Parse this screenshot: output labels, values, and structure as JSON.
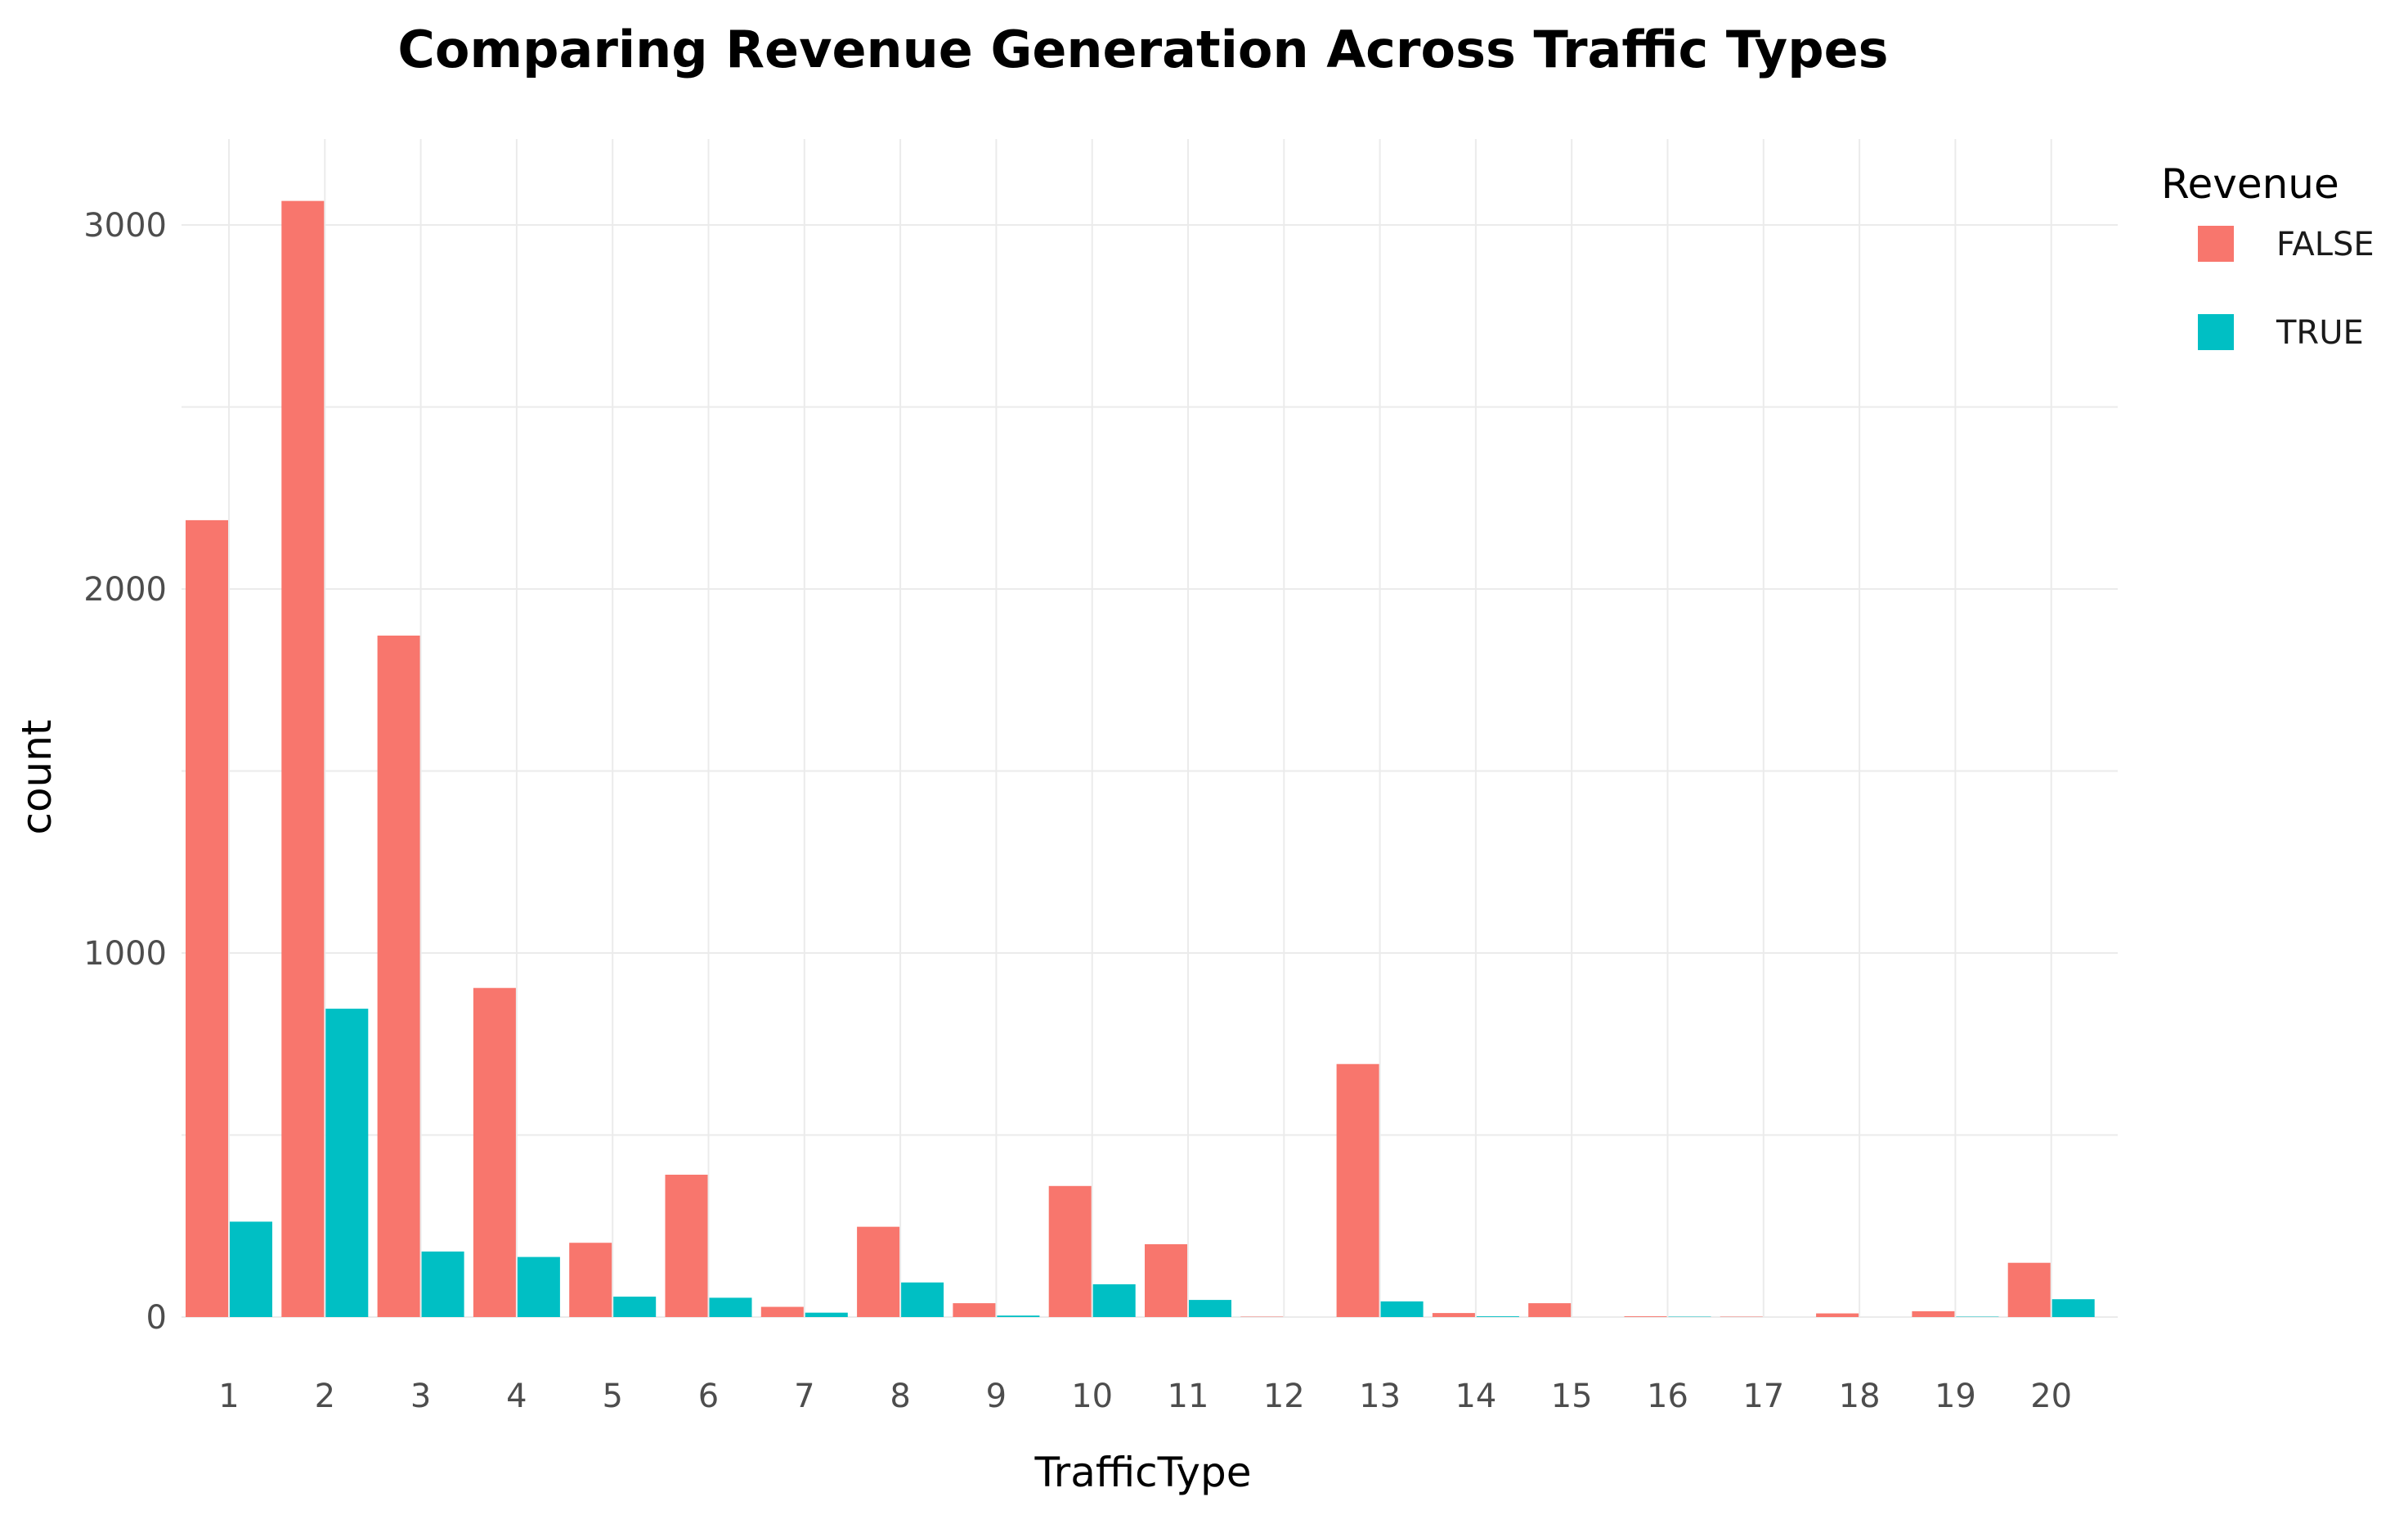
{
  "chart_data": {
    "type": "bar",
    "title": "Comparing Revenue Generation Across Traffic Types",
    "xlabel": "TrafficType",
    "ylabel": "count",
    "categories": [
      "1",
      "2",
      "3",
      "4",
      "5",
      "6",
      "7",
      "8",
      "9",
      "10",
      "11",
      "12",
      "13",
      "14",
      "15",
      "16",
      "17",
      "18",
      "19",
      "20"
    ],
    "series": [
      {
        "name": "FALSE",
        "color": "#F8766D",
        "values": [
          2189,
          3066,
          1872,
          904,
          204,
          391,
          28,
          248,
          38,
          360,
          200,
          1,
          695,
          11,
          38,
          2,
          1,
          10,
          16,
          149
        ]
      },
      {
        "name": "TRUE",
        "color": "#00BFC4",
        "values": [
          262,
          847,
          180,
          165,
          56,
          53,
          12,
          95,
          4,
          90,
          47,
          0,
          43,
          2,
          0,
          1,
          0,
          0,
          1,
          49
        ]
      }
    ],
    "ylim": [
      0,
      3200
    ],
    "yticks": [
      0,
      1000,
      2000,
      3000
    ],
    "legend": {
      "title": "Revenue",
      "position": "right",
      "entries": [
        "FALSE",
        "TRUE"
      ]
    },
    "grid": true
  }
}
